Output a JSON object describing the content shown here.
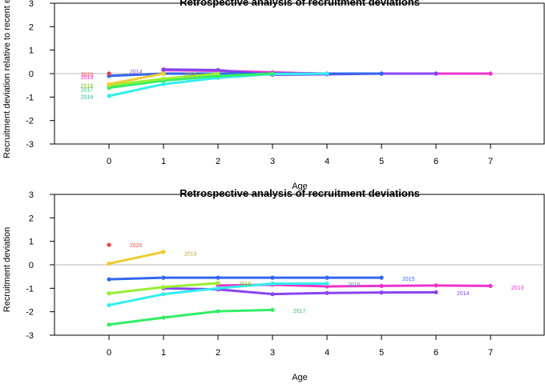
{
  "chart_data": [
    {
      "type": "line",
      "title": "Retrospective analysis of recruitment deviations",
      "xlabel": "Age",
      "ylabel": "Recruitment deviation relative to recent e",
      "xlim": [
        -1,
        8
      ],
      "ylim": [
        -3,
        3
      ],
      "xticks": [
        0,
        1,
        2,
        3,
        4,
        5,
        6,
        7
      ],
      "yticks": [
        -3,
        -2,
        -1,
        0,
        1,
        2,
        3
      ],
      "reference_line": 0,
      "series": [
        {
          "name": "2013",
          "color": "#ee33cc",
          "x": [
            1,
            2,
            3,
            4,
            5,
            6,
            7
          ],
          "y": [
            0.15,
            0.12,
            0.05,
            0.0,
            0.0,
            0.0,
            0.0
          ]
        },
        {
          "name": "2014",
          "color": "#8844ee",
          "x": [
            1,
            2,
            3,
            4,
            5,
            6
          ],
          "y": [
            0.18,
            0.15,
            -0.05,
            -0.03,
            0.0,
            0.0
          ]
        },
        {
          "name": "2015",
          "color": "#3366ee",
          "x": [
            0,
            1,
            2,
            3,
            4,
            5
          ],
          "y": [
            -0.1,
            0.0,
            0.0,
            0.0,
            0.0,
            0.0
          ]
        },
        {
          "name": "2016",
          "color": "#33eeee",
          "x": [
            0,
            1,
            2,
            3,
            4
          ],
          "y": [
            -0.95,
            -0.45,
            -0.18,
            -0.02,
            0.0
          ]
        },
        {
          "name": "2017",
          "color": "#33ee66",
          "x": [
            0,
            1,
            2,
            3
          ],
          "y": [
            -0.6,
            -0.3,
            -0.1,
            0.0
          ]
        },
        {
          "name": "2018",
          "color": "#99ee33",
          "x": [
            0,
            1,
            2
          ],
          "y": [
            -0.5,
            -0.22,
            0.0
          ]
        },
        {
          "name": "2019",
          "color": "#eecc33",
          "x": [
            0,
            1
          ],
          "y": [
            -0.45,
            0.0
          ]
        },
        {
          "name": "2020",
          "color": "#ee4444",
          "x": [
            0
          ],
          "y": [
            0.0
          ]
        }
      ],
      "labels": [
        {
          "text": "2020",
          "x": -0.52,
          "y": -0.02,
          "color": "#ee4444"
        },
        {
          "text": "2013",
          "x": -0.52,
          "y": -0.13,
          "color": "#ee33cc"
        },
        {
          "text": "2014",
          "x": 0.38,
          "y": 0.1,
          "color": "#8844ee"
        },
        {
          "text": "2019",
          "x": 1.38,
          "y": -0.02,
          "color": "#bbaa33"
        },
        {
          "text": "2018",
          "x": -0.52,
          "y": -0.5,
          "color": "#88bb33"
        },
        {
          "text": "2017",
          "x": -0.52,
          "y": -0.67,
          "color": "#33bb66"
        },
        {
          "text": "2016",
          "x": -0.52,
          "y": -0.98,
          "color": "#33aaaa"
        }
      ]
    },
    {
      "type": "line",
      "title": "Retrospective analysis of recruitment deviations",
      "xlabel": "Age",
      "ylabel": "Recruitment deviation",
      "xlim": [
        -1,
        8
      ],
      "ylim": [
        -3,
        3
      ],
      "xticks": [
        0,
        1,
        2,
        3,
        4,
        5,
        6,
        7
      ],
      "yticks": [
        -3,
        -2,
        -1,
        0,
        1,
        2,
        3
      ],
      "reference_line": 0,
      "series": [
        {
          "name": "2013",
          "color": "#ee33cc",
          "x": [
            2,
            3,
            4,
            5,
            6,
            7
          ],
          "y": [
            -0.88,
            -0.85,
            -0.92,
            -0.9,
            -0.88,
            -0.9
          ]
        },
        {
          "name": "2014",
          "color": "#8844ee",
          "x": [
            1,
            2,
            3,
            4,
            5,
            6
          ],
          "y": [
            -1.0,
            -1.05,
            -1.25,
            -1.2,
            -1.18,
            -1.17
          ]
        },
        {
          "name": "2015",
          "color": "#3366ee",
          "x": [
            0,
            1,
            2,
            3,
            4,
            5
          ],
          "y": [
            -0.62,
            -0.55,
            -0.55,
            -0.55,
            -0.55,
            -0.55
          ]
        },
        {
          "name": "2016",
          "color": "#33eeee",
          "x": [
            0,
            1,
            2,
            3,
            4
          ],
          "y": [
            -1.72,
            -1.25,
            -1.0,
            -0.8,
            -0.8
          ]
        },
        {
          "name": "2017",
          "color": "#33ee66",
          "x": [
            0,
            1,
            2,
            3
          ],
          "y": [
            -2.55,
            -2.25,
            -1.98,
            -1.92
          ]
        },
        {
          "name": "2018",
          "color": "#99ee33",
          "x": [
            0,
            1,
            2
          ],
          "y": [
            -1.22,
            -0.95,
            -0.78
          ]
        },
        {
          "name": "2019",
          "color": "#eecc33",
          "x": [
            0,
            1
          ],
          "y": [
            0.05,
            0.55
          ]
        },
        {
          "name": "2020",
          "color": "#ee4444",
          "x": [
            0
          ],
          "y": [
            0.85
          ]
        }
      ],
      "labels": [
        {
          "text": "2020",
          "x": 0.38,
          "y": 0.85,
          "color": "#ee4444"
        },
        {
          "text": "2019",
          "x": 1.38,
          "y": 0.5,
          "color": "#bbaa33"
        },
        {
          "text": "2018",
          "x": 2.38,
          "y": -0.78,
          "color": "#88bb33"
        },
        {
          "text": "2017",
          "x": 3.38,
          "y": -1.95,
          "color": "#33bb66"
        },
        {
          "text": "2016",
          "x": 4.38,
          "y": -0.82,
          "color": "#33aaaa"
        },
        {
          "text": "2015",
          "x": 5.38,
          "y": -0.58,
          "color": "#3366ee"
        },
        {
          "text": "2014",
          "x": 6.38,
          "y": -1.2,
          "color": "#8844ee"
        },
        {
          "text": "2013",
          "x": 7.38,
          "y": -0.95,
          "color": "#ee33cc"
        }
      ]
    }
  ]
}
